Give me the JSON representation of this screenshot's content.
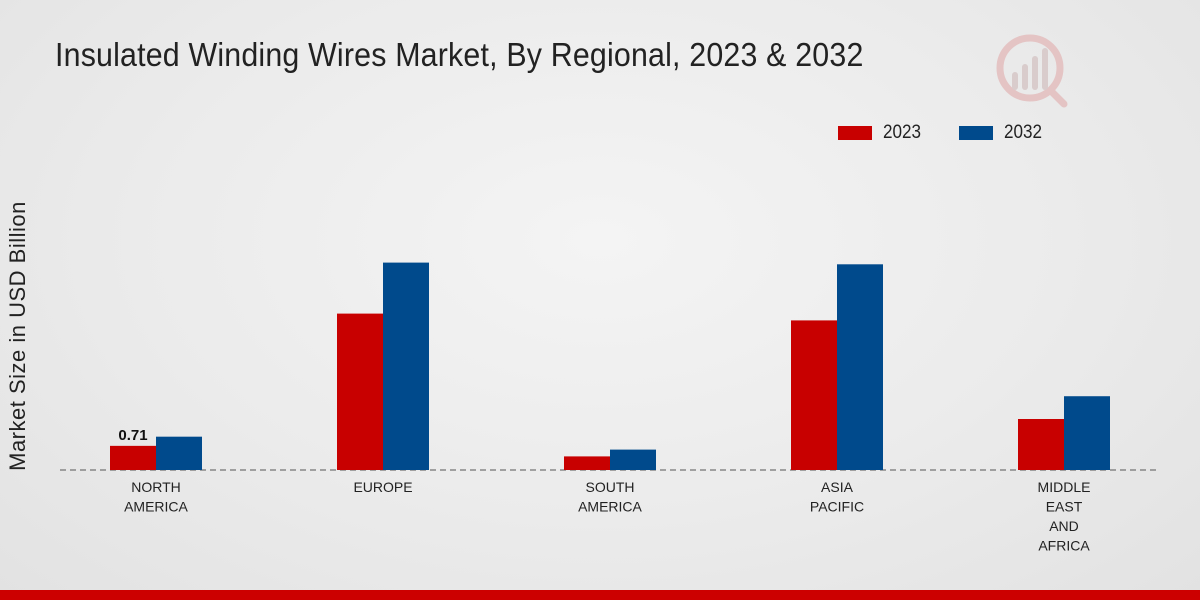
{
  "chart_data": {
    "type": "bar",
    "title": "Insulated Winding Wires Market, By Regional, 2023 & 2032",
    "xlabel": "",
    "ylabel": "Market Size in USD Billion",
    "categories": [
      "NORTH\nAMERICA",
      "EUROPE",
      "SOUTH\nAMERICA",
      "ASIA\nPACIFIC",
      "MIDDLE\nEAST\nAND\nAFRICA"
    ],
    "series": [
      {
        "name": "2023",
        "color": "#c80000",
        "values": [
          0.71,
          4.6,
          0.4,
          4.4,
          1.5
        ]
      },
      {
        "name": "2032",
        "color": "#004a8c",
        "values": [
          0.98,
          6.1,
          0.6,
          6.05,
          2.17
        ]
      }
    ],
    "data_labels": [
      {
        "series": "2023",
        "category_index": 0,
        "text": "0.71"
      }
    ],
    "ylim": [
      0,
      10
    ],
    "grid": false,
    "legend_position": "top-right"
  }
}
